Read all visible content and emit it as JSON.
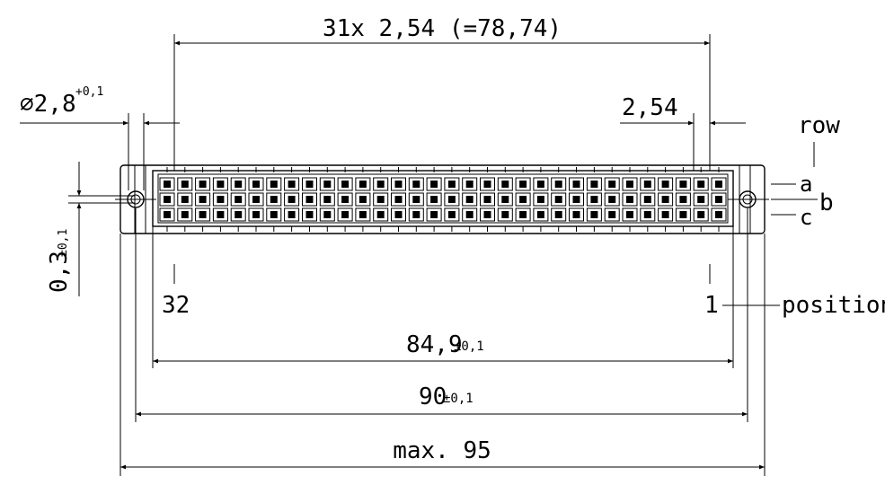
{
  "dimensions": {
    "pitch_total": "31x 2,54 (=78,74)",
    "hole_diameter_base": "∅2,8",
    "hole_diameter_tol": "+0,1",
    "pitch_single": "2,54",
    "offset_base": "0,3",
    "offset_tol": "±0,1",
    "inner_length_base": "84,9",
    "inner_length_tol": "±0,1",
    "hole_spacing_base": "90",
    "hole_spacing_tol": "±0,1",
    "overall_length": "max. 95"
  },
  "labels": {
    "row": "row",
    "row_a": "a",
    "row_b": "b",
    "row_c": "c",
    "position_first": "1",
    "position_last": "32",
    "position": "position"
  },
  "connector": {
    "pin_count_per_row": 32,
    "rows": 3
  }
}
